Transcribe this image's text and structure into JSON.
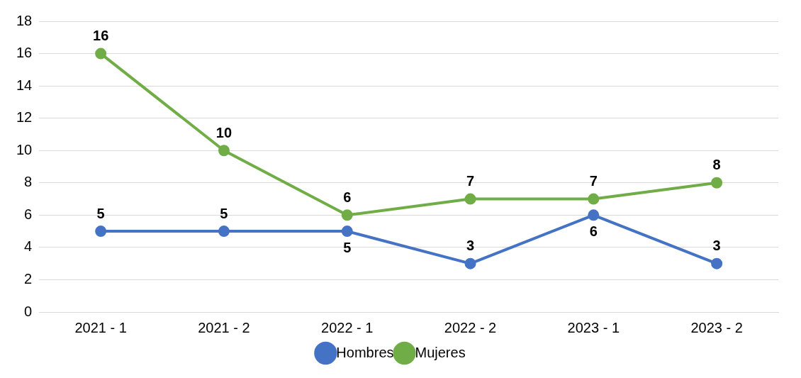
{
  "chart_data": {
    "type": "line",
    "categories": [
      "2021 - 1",
      "2021 - 2",
      "2022 - 1",
      "2022 - 2",
      "2023 - 1",
      "2023 - 2"
    ],
    "series": [
      {
        "name": "Hombres",
        "color": "#4472c4",
        "values": [
          5,
          5,
          5,
          3,
          6,
          3
        ]
      },
      {
        "name": "Mujeres",
        "color": "#70ad47",
        "values": [
          16,
          10,
          6,
          7,
          7,
          8
        ]
      }
    ],
    "ylim": [
      0,
      18
    ],
    "yticks": [
      0,
      2,
      4,
      6,
      8,
      10,
      12,
      14,
      16,
      18
    ],
    "grid": "y",
    "legend": "bottom",
    "marker": "circle",
    "line_style": "solid",
    "data_labels": true
  }
}
